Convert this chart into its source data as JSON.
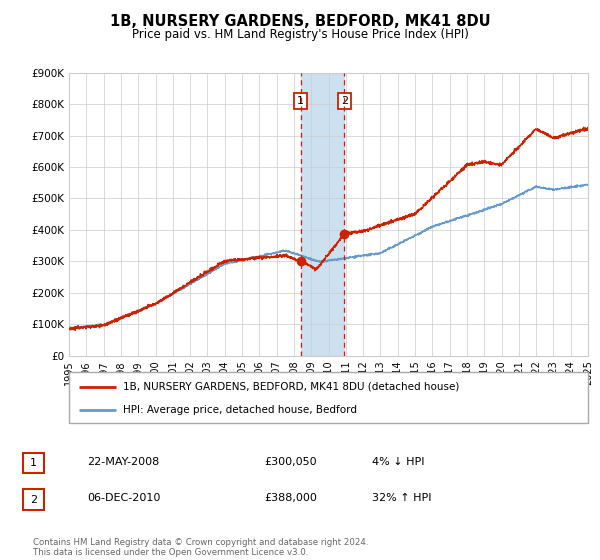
{
  "title": "1B, NURSERY GARDENS, BEDFORD, MK41 8DU",
  "subtitle": "Price paid vs. HM Land Registry's House Price Index (HPI)",
  "legend_label_red": "1B, NURSERY GARDENS, BEDFORD, MK41 8DU (detached house)",
  "legend_label_blue": "HPI: Average price, detached house, Bedford",
  "transaction1_date": "22-MAY-2008",
  "transaction1_price": "£300,050",
  "transaction1_hpi": "4% ↓ HPI",
  "transaction2_date": "06-DEC-2010",
  "transaction2_price": "£388,000",
  "transaction2_hpi": "32% ↑ HPI",
  "transaction1_x": 2008.39,
  "transaction1_y": 300050,
  "transaction2_x": 2010.92,
  "transaction2_y": 388000,
  "red_color": "#cc2200",
  "blue_color": "#6699cc",
  "span_color": "#cce0f0",
  "background_color": "#ffffff",
  "grid_color": "#cccccc",
  "xlim": [
    1995,
    2025
  ],
  "ylim": [
    0,
    900000
  ],
  "yticks": [
    0,
    100000,
    200000,
    300000,
    400000,
    500000,
    600000,
    700000,
    800000,
    900000
  ],
  "ytick_labels": [
    "£0",
    "£100K",
    "£200K",
    "£300K",
    "£400K",
    "£500K",
    "£600K",
    "£700K",
    "£800K",
    "£900K"
  ],
  "xticks": [
    1995,
    1996,
    1997,
    1998,
    1999,
    2000,
    2001,
    2002,
    2003,
    2004,
    2005,
    2006,
    2007,
    2008,
    2009,
    2010,
    2011,
    2012,
    2013,
    2014,
    2015,
    2016,
    2017,
    2018,
    2019,
    2020,
    2021,
    2022,
    2023,
    2024,
    2025
  ],
  "footer": "Contains HM Land Registry data © Crown copyright and database right 2024.\nThis data is licensed under the Open Government Licence v3.0."
}
